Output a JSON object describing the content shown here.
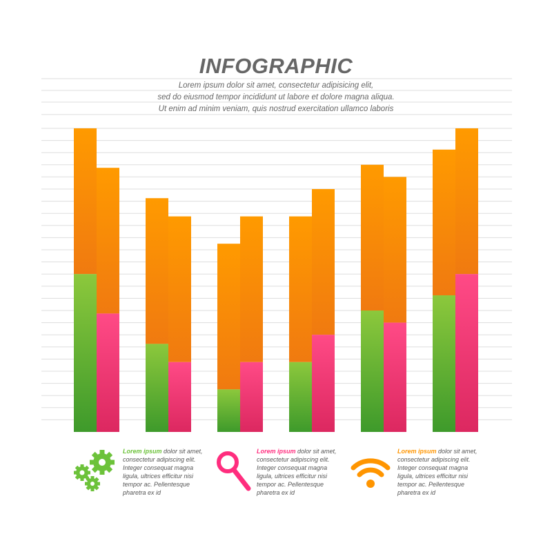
{
  "header": {
    "title": "INFOGRAPHIC",
    "lines": [
      "Lorem ipsum dolor sit amet, consectetur adipisicing elit,",
      "sed do eiusmod tempor incididunt ut labore et dolore magna aliqua.",
      "Ut enim ad minim veniam, quis nostrud exercitation ullamco laboris"
    ]
  },
  "chart_data": {
    "type": "bar",
    "stacked": true,
    "grid": true,
    "ylim": [
      0,
      100
    ],
    "categories": [
      "",
      "",
      "",
      "",
      "",
      ""
    ],
    "bar_pairs": [
      {
        "left": {
          "base_color": "green",
          "base": 52,
          "top": 48
        },
        "right": {
          "base_color": "pink",
          "base": 39,
          "top": 48
        }
      },
      {
        "left": {
          "base_color": "green",
          "base": 29,
          "top": 48
        },
        "right": {
          "base_color": "pink",
          "base": 23,
          "top": 48
        }
      },
      {
        "left": {
          "base_color": "green",
          "base": 14,
          "top": 48
        },
        "right": {
          "base_color": "pink",
          "base": 23,
          "top": 48
        }
      },
      {
        "left": {
          "base_color": "green",
          "base": 23,
          "top": 48
        },
        "right": {
          "base_color": "pink",
          "base": 32,
          "top": 48
        }
      },
      {
        "left": {
          "base_color": "green",
          "base": 40,
          "top": 48
        },
        "right": {
          "base_color": "pink",
          "base": 36,
          "top": 48
        }
      },
      {
        "left": {
          "base_color": "green",
          "base": 45,
          "top": 48
        },
        "right": {
          "base_color": "pink",
          "base": 52,
          "top": 48
        }
      }
    ],
    "colors": {
      "green": [
        "#8cc83c",
        "#3e9a2b"
      ],
      "pink": [
        "#ff4a86",
        "#dc2860"
      ],
      "orange": [
        "#ff9a00",
        "#f07a10"
      ],
      "grid": "#dddddd"
    }
  },
  "footer": {
    "items": [
      {
        "icon": "gears-icon",
        "color": "#6cc23a",
        "highlight": "Lorem ipsum",
        "lines": [
          " dolor sit amet,",
          "consectetur adipiscing elit.",
          "Integer consequat magna",
          "ligula, ultrices efficitur nisi",
          "tempor ac. Pellentesque",
          "pharetra ex id"
        ]
      },
      {
        "icon": "magnifier-icon",
        "color": "#ff2d7e",
        "highlight": "Lorem ipsum",
        "lines": [
          " dolor sit amet,",
          "consectetur adipiscing elit.",
          "Integer consequat magna",
          "ligula, ultrices efficitur nisi",
          "tempor ac. Pellentesque",
          "pharetra ex id"
        ]
      },
      {
        "icon": "wifi-icon",
        "color": "#ff9500",
        "highlight": "Lorem ipsum",
        "lines": [
          " dolor sit amet,",
          "consectetur adipiscing elit.",
          "Integer consequat magna",
          "ligula, ultrices efficitur nisi",
          "tempor ac. Pellentesque",
          "pharetra ex id"
        ]
      }
    ]
  }
}
